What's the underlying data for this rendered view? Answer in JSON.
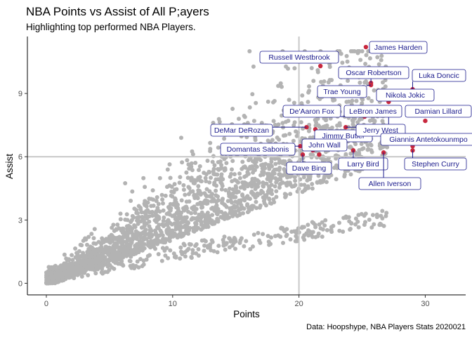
{
  "header": {
    "title": "NBA Points vs Assist of All P;ayers",
    "subtitle": "Highlighting top performed NBA Players.",
    "caption": "Data: Hoopshype, NBA Players Stats 2020021"
  },
  "colors": {
    "background_points": "#b3b3b3",
    "highlight_points": "#c8283e",
    "label_text": "#1a1a8c",
    "label_border": "#1a1a8c",
    "reference_lines": "#c8c8c8"
  },
  "chart_data": {
    "type": "scatter",
    "title": "NBA Points vs Assist of All P;ayers",
    "subtitle": "Highlighting top performed NBA Players.",
    "xlabel": "Points",
    "ylabel": "Assist",
    "xlim": [
      -1.5,
      33.2
    ],
    "ylim": [
      -0.55,
      11.7
    ],
    "x_ticks": [
      0,
      10,
      20,
      30
    ],
    "y_ticks": [
      0,
      3,
      6,
      9
    ],
    "grid": false,
    "reference_lines": {
      "x": 20,
      "y": 6
    },
    "background_series": {
      "description_note": "",
      "count": 2600,
      "seed": 20210
    },
    "highlighted": [
      {
        "name": "James Harden",
        "x": 25.3,
        "y": 11.2
      },
      {
        "name": "Russell Westbrook",
        "x": 21.7,
        "y": 10.3
      },
      {
        "name": "Oscar Robertson",
        "x": 25.7,
        "y": 9.5
      },
      {
        "name": "Luka Doncic",
        "x": 29.0,
        "y": 9.2
      },
      {
        "name": "Trae Young",
        "x": 25.7,
        "y": 9.4
      },
      {
        "name": "Nikola Jokic",
        "x": 27.1,
        "y": 8.6
      },
      {
        "name": "De'Aaron Fox",
        "x": 25.2,
        "y": 7.9
      },
      {
        "name": "LeBron James",
        "x": 27.1,
        "y": 7.4
      },
      {
        "name": "Damian Lillard",
        "x": 30.0,
        "y": 7.7
      },
      {
        "name": "DeMar DeRozan",
        "x": 20.6,
        "y": 7.4
      },
      {
        "name": "Jimmy Butler",
        "x": 21.3,
        "y": 7.3
      },
      {
        "name": "Jerry West",
        "x": 23.7,
        "y": 7.4
      },
      {
        "name": "Giannis Antetokounmpo",
        "x": 27.2,
        "y": 6.8
      },
      {
        "name": "Domantas Sabonis",
        "x": 20.1,
        "y": 6.5
      },
      {
        "name": "John Wall",
        "x": 21.1,
        "y": 6.3
      },
      {
        "name": "Larry Bird",
        "x": 24.3,
        "y": 6.3
      },
      {
        "name": "Stephen Curry",
        "x": 29.0,
        "y": 6.3
      },
      {
        "name": "Allen Iverson",
        "x": 26.7,
        "y": 6.2
      },
      {
        "name": "Dave Bing",
        "x": 20.3,
        "y": 6.1
      },
      {
        "name": "",
        "x": 21.6,
        "y": 6.1
      },
      {
        "name": "",
        "x": 29.0,
        "y": 6.5
      }
    ]
  }
}
